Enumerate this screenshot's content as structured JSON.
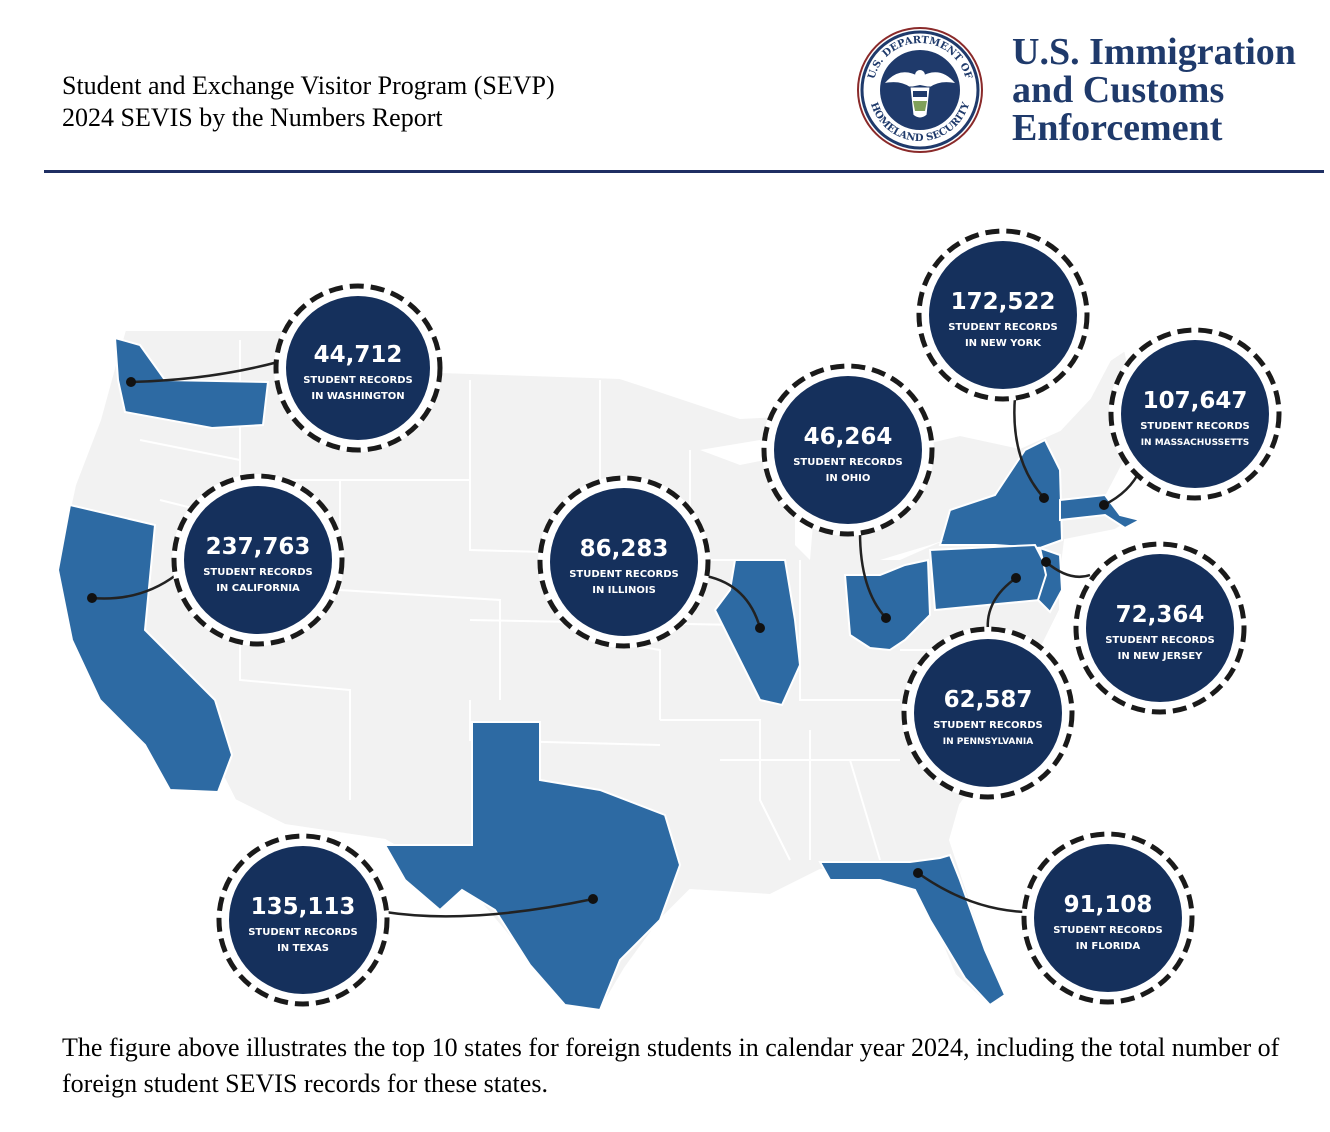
{
  "header": {
    "line1": "Student and Exchange Visitor Program (SEVP)",
    "line2": "2024 SEVIS by the Numbers Report"
  },
  "logo": {
    "seal_text_top": "U.S. DEPARTMENT OF",
    "seal_text_bottom": "HOMELAND SECURITY",
    "agency_line1": "U.S. Immigration",
    "agency_line2": "and Customs",
    "agency_line3": "Enforcement"
  },
  "colors": {
    "highlight_state": "#2d6aa3",
    "base_state": "#f2f2f2",
    "bubble_fill": "#15305c",
    "rule": "#1f2f63"
  },
  "states": [
    {
      "value": "44,712",
      "line1": "STUDENT RECORDS",
      "line2": "IN WASHINGTON"
    },
    {
      "value": "237,763",
      "line1": "STUDENT RECORDS",
      "line2": "IN CALIFORNIA"
    },
    {
      "value": "135,113",
      "line1": "STUDENT RECORDS",
      "line2": "IN TEXAS"
    },
    {
      "value": "86,283",
      "line1": "STUDENT RECORDS",
      "line2": "IN ILLINOIS"
    },
    {
      "value": "46,264",
      "line1": "STUDENT RECORDS",
      "line2": "IN OHIO"
    },
    {
      "value": "172,522",
      "line1": "STUDENT RECORDS",
      "line2": "IN NEW YORK"
    },
    {
      "value": "107,647",
      "line1": "STUDENT RECORDS",
      "line2": "IN MASSACHUSSETTS"
    },
    {
      "value": "72,364",
      "line1": "STUDENT RECORDS",
      "line2": "IN NEW JERSEY"
    },
    {
      "value": "62,587",
      "line1": "STUDENT RECORDS",
      "line2": "IN PENNSYLVANIA"
    },
    {
      "value": "91,108",
      "line1": "STUDENT RECORDS",
      "line2": "IN FLORIDA"
    }
  ],
  "caption": "The figure above illustrates the top 10 states for foreign students in calendar year 2024, including the total number of foreign student SEVIS records for these states."
}
